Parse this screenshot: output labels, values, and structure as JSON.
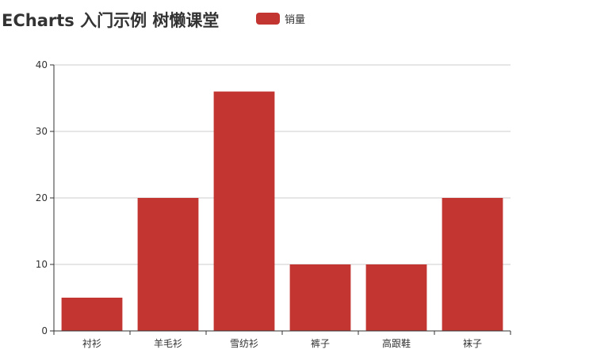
{
  "chart_data": {
    "type": "bar",
    "title": "ECharts 入门示例 树懒课堂",
    "categories": [
      "衬衫",
      "羊毛衫",
      "雪纺衫",
      "裤子",
      "高跟鞋",
      "袜子"
    ],
    "series": [
      {
        "name": "销量",
        "values": [
          5,
          20,
          36,
          10,
          10,
          20
        ]
      }
    ],
    "ylim": [
      0,
      40
    ],
    "yticks": [
      0,
      10,
      20,
      30,
      40
    ],
    "legend_position": "top-center",
    "grid": "horizontal",
    "colors": {
      "bar": "#c23531",
      "axis": "#333333",
      "grid": "#cccccc"
    }
  }
}
